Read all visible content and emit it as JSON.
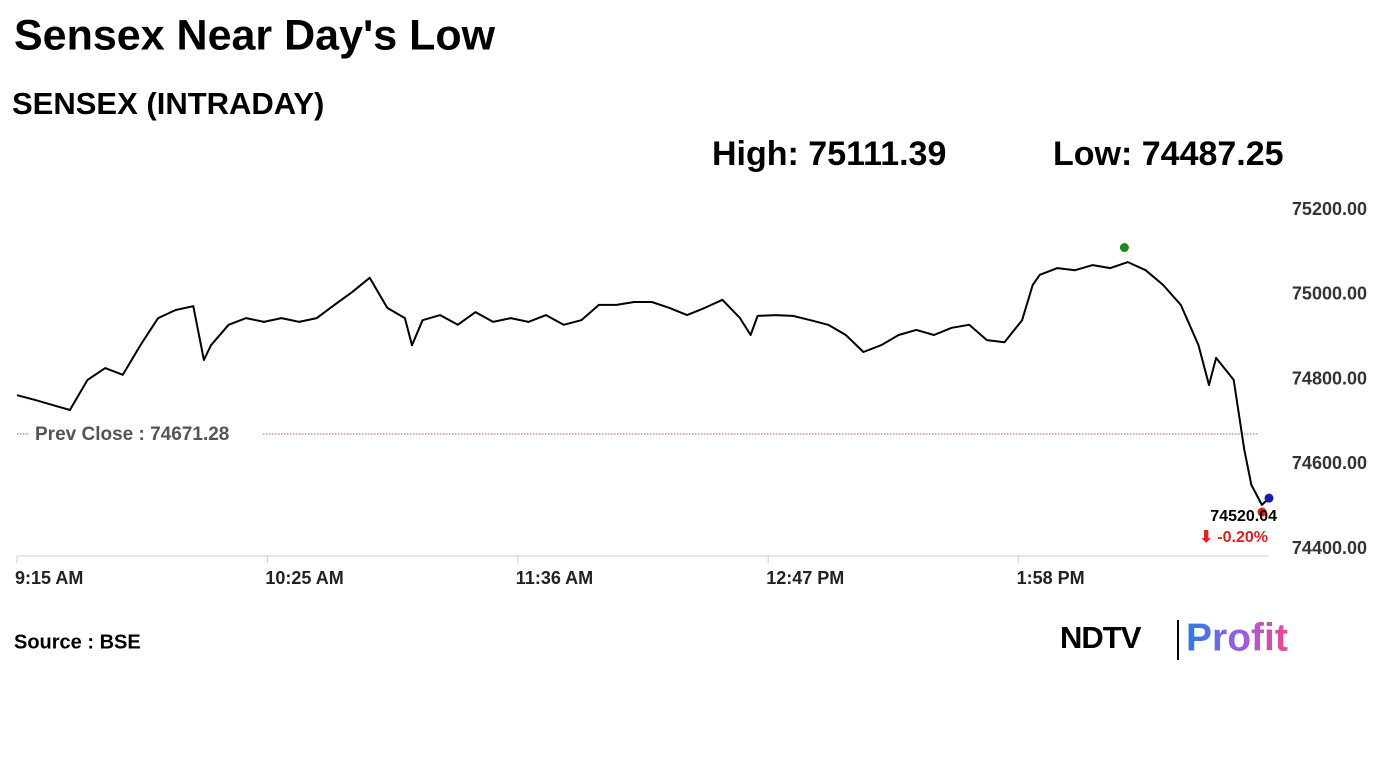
{
  "chart_data": {
    "type": "line",
    "title": "Sensex Near Day's Low",
    "subtitle": "SENSEX (INTRADAY)",
    "high_label": "High: 75111.39",
    "high": 75111.39,
    "high_time": 869,
    "low_label": "Low: 74487.25",
    "low": 74487.25,
    "low_time": 908,
    "prev_close_label": "Prev Close : 74671.28",
    "prev_close": 74671.28,
    "last_label": "74520.04",
    "change_label": "⬇ -0.20%",
    "source": "Source : BSE",
    "brand": "NDTV",
    "brand_product": "Profit",
    "color": "#000000",
    "x": [
      555,
      560,
      565,
      570,
      575,
      580,
      585,
      590,
      595,
      600,
      605,
      608,
      610,
      615,
      620,
      625,
      630,
      635,
      640,
      645,
      650,
      655,
      660,
      665,
      667,
      670,
      675,
      680,
      685,
      690,
      695,
      700,
      705,
      710,
      715,
      720,
      725,
      730,
      735,
      740,
      745,
      750,
      755,
      760,
      763,
      765,
      770,
      775,
      780,
      785,
      790,
      795,
      800,
      805,
      810,
      815,
      820,
      825,
      830,
      835,
      840,
      843,
      845,
      850,
      855,
      860,
      865,
      870,
      875,
      880,
      885,
      890,
      893,
      895,
      900,
      903,
      905,
      908,
      910
    ],
    "values": [
      74763,
      74752,
      74740,
      74728,
      74799,
      74827,
      74811,
      74881,
      74945,
      74964,
      74973,
      74846,
      74881,
      74929,
      74945,
      74936,
      74945,
      74936,
      74945,
      74976,
      75006,
      75040,
      74969,
      74945,
      74881,
      74940,
      74952,
      74929,
      74959,
      74936,
      74945,
      74936,
      74952,
      74929,
      74940,
      74976,
      74976,
      74983,
      74983,
      74969,
      74952,
      74969,
      74988,
      74945,
      74905,
      74950,
      74952,
      74950,
      74940,
      74929,
      74905,
      74865,
      74881,
      74905,
      74917,
      74905,
      74922,
      74929,
      74893,
      74888,
      74940,
      75023,
      75047,
      75063,
      75058,
      75070,
      75063,
      75077,
      75058,
      75023,
      74976,
      74881,
      74787,
      74851,
      74799,
      74634,
      74551,
      74504,
      74520.04
    ],
    "xlim": [
      555,
      910
    ],
    "xticks": [
      {
        "value": 555,
        "label": "9:15 AM"
      },
      {
        "value": 626,
        "label": "10:25 AM"
      },
      {
        "value": 697,
        "label": "11:36 AM"
      },
      {
        "value": 768,
        "label": "12:47 PM"
      },
      {
        "value": 839,
        "label": "1:58 PM"
      }
    ],
    "ylim": [
      74400,
      75200
    ],
    "yticks": [
      {
        "value": 75200,
        "label": "75200.00"
      },
      {
        "value": 75000,
        "label": "75000.00"
      },
      {
        "value": 74800,
        "label": "74800.00"
      },
      {
        "value": 74600,
        "label": "74600.00"
      },
      {
        "value": 74400,
        "label": "74400.00"
      }
    ],
    "grid": false
  }
}
